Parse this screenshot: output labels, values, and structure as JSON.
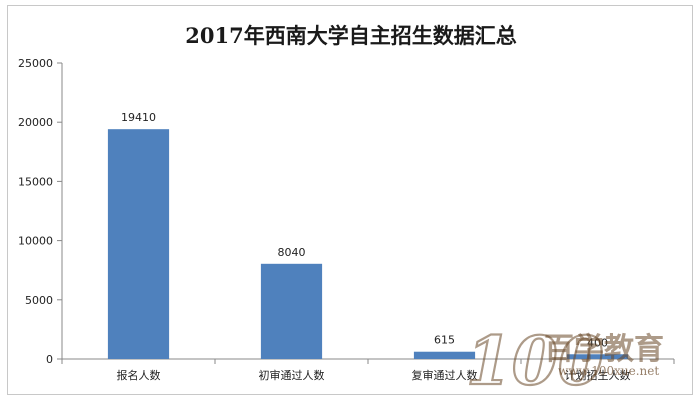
{
  "chart_data": {
    "type": "bar",
    "title": "2017年西南大学自主招生数据汇总",
    "categories": [
      "报名人数",
      "初审通过人数",
      "复审通过人数",
      "计划招生人数"
    ],
    "values": [
      19410,
      8040,
      615,
      400
    ],
    "data_labels": [
      "19410",
      "8040",
      "615",
      "400"
    ],
    "yticks": [
      "0",
      "5000",
      "10000",
      "15000",
      "20000",
      "25000"
    ],
    "ylim": [
      0,
      25000
    ],
    "xlabel": "",
    "ylabel": "",
    "grid": false,
    "legend": "none",
    "bar_color": "#4f81bd"
  },
  "watermark": {
    "number": "100",
    "chinese": "百学教育",
    "url": "www.100xue.net"
  }
}
